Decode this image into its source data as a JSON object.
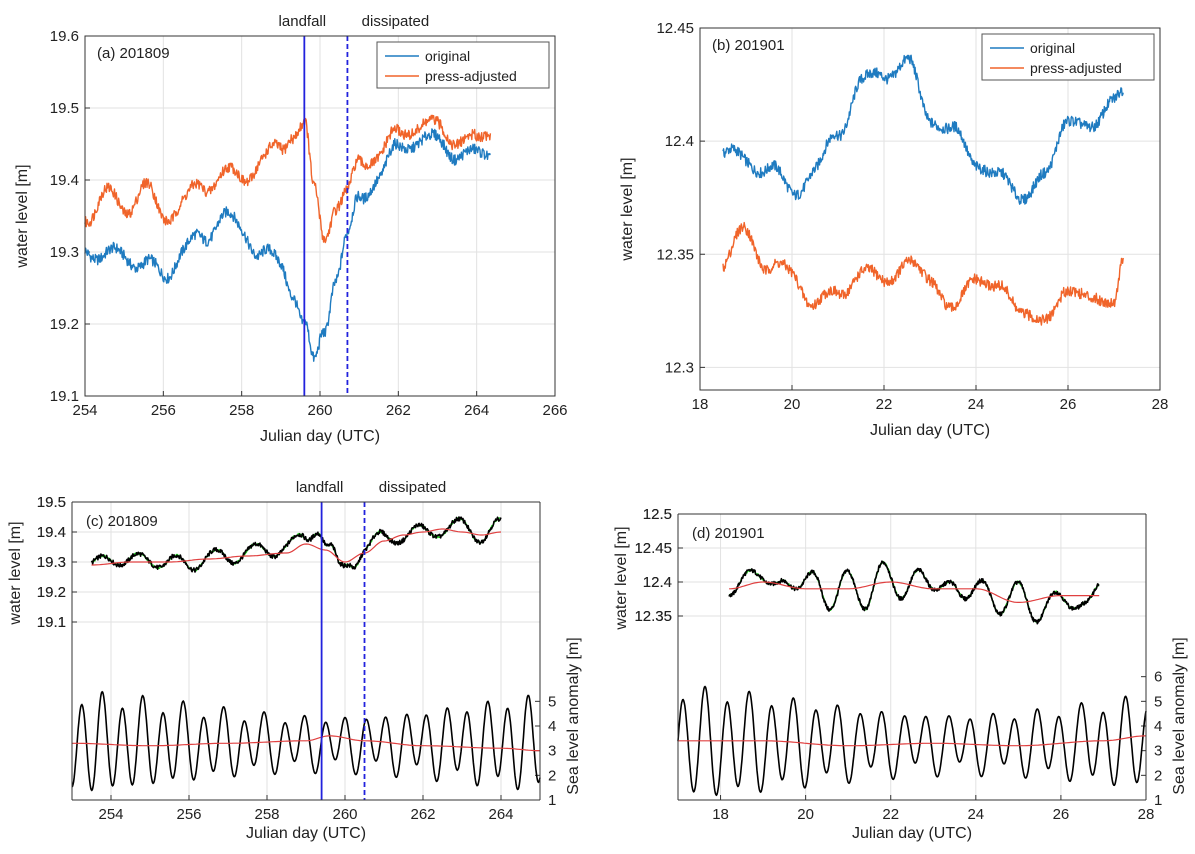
{
  "colors": {
    "original": "#1f7bc0",
    "press_adjusted": "#f0642a",
    "observed": "#000000",
    "tide_fit": "#22cc22",
    "residual": "#e04040",
    "landfall_line": "#2222dd",
    "frame": "#333333"
  },
  "chart_data": [
    {
      "id": "a",
      "type": "line",
      "panel_label": "(a) 201809",
      "xlabel": "Julian day (UTC)",
      "ylabel": "water level [m]",
      "xlim": [
        254,
        266
      ],
      "ylim": [
        19.1,
        19.6
      ],
      "xticks": [
        254,
        256,
        258,
        260,
        262,
        264,
        266
      ],
      "yticks": [
        19.1,
        19.2,
        19.3,
        19.4,
        19.5,
        19.6
      ],
      "ytick_labels": [
        "19.1",
        "19.2",
        "19.3",
        "19.4",
        "19.5",
        "19.6"
      ],
      "grid": true,
      "legend": {
        "position": "top-right",
        "entries": [
          "original",
          "press-adjusted"
        ]
      },
      "events": [
        {
          "label": "landfall",
          "x": 259.6,
          "style": "solid"
        },
        {
          "label": "dissipated",
          "x": 260.7,
          "style": "dashed"
        }
      ],
      "series": [
        {
          "name": "original",
          "color_key": "original",
          "x": [
            254.0,
            254.5,
            255.0,
            255.5,
            256.0,
            256.5,
            257.0,
            257.5,
            258.0,
            258.5,
            259.0,
            259.3,
            259.6,
            259.85,
            260.1,
            260.4,
            260.7,
            261.0,
            261.5,
            262.0,
            262.5,
            263.0,
            263.5,
            264.0,
            264.35
          ],
          "y": [
            19.31,
            19.29,
            19.3,
            19.28,
            19.27,
            19.3,
            19.32,
            19.35,
            19.33,
            19.3,
            19.28,
            19.25,
            19.2,
            19.14,
            19.19,
            19.27,
            19.32,
            19.37,
            19.41,
            19.44,
            19.46,
            19.45,
            19.44,
            19.43,
            19.44
          ]
        },
        {
          "name": "press-adjusted",
          "color_key": "press_adjusted",
          "x": [
            254.0,
            254.5,
            255.0,
            255.5,
            256.0,
            256.5,
            257.0,
            257.5,
            258.0,
            258.5,
            259.0,
            259.3,
            259.6,
            259.85,
            260.1,
            260.4,
            260.7,
            261.0,
            261.5,
            262.0,
            262.5,
            263.0,
            263.5,
            264.0,
            264.35
          ],
          "y": [
            19.35,
            19.38,
            19.36,
            19.39,
            19.35,
            19.37,
            19.39,
            19.41,
            19.4,
            19.43,
            19.44,
            19.47,
            19.48,
            19.38,
            19.32,
            19.37,
            19.38,
            19.42,
            19.44,
            19.46,
            19.48,
            19.47,
            19.46,
            19.45,
            19.47
          ]
        }
      ]
    },
    {
      "id": "b",
      "type": "line",
      "panel_label": "(b) 201901",
      "xlabel": "Julian day (UTC)",
      "ylabel": "water level [m]",
      "xlim": [
        18,
        28
      ],
      "ylim": [
        12.29,
        12.45
      ],
      "xticks": [
        18,
        20,
        22,
        24,
        26,
        28
      ],
      "yticks": [
        12.3,
        12.35,
        12.4,
        12.45
      ],
      "ytick_labels": [
        "12.3",
        "12.35",
        "12.4",
        "12.45"
      ],
      "grid": true,
      "legend": {
        "position": "top-right",
        "entries": [
          "original",
          "press-adjusted"
        ]
      },
      "events": [],
      "series": [
        {
          "name": "original",
          "color_key": "original",
          "x": [
            18.5,
            19.0,
            19.5,
            20.0,
            20.5,
            21.0,
            21.5,
            22.0,
            22.5,
            23.0,
            23.5,
            24.0,
            24.5,
            25.0,
            25.5,
            26.0,
            26.5,
            27.0,
            27.2
          ],
          "y": [
            12.395,
            12.39,
            12.39,
            12.375,
            12.39,
            12.4,
            12.43,
            12.425,
            12.44,
            12.405,
            12.41,
            12.385,
            12.39,
            12.37,
            12.39,
            12.405,
            12.41,
            12.415,
            12.42
          ]
        },
        {
          "name": "press-adjusted",
          "color_key": "press_adjusted",
          "x": [
            18.5,
            19.0,
            19.5,
            20.0,
            20.5,
            21.0,
            21.5,
            22.0,
            22.5,
            23.0,
            23.5,
            24.0,
            24.5,
            25.0,
            25.5,
            26.0,
            26.5,
            27.0,
            27.2
          ],
          "y": [
            12.345,
            12.36,
            12.345,
            12.34,
            12.33,
            12.33,
            12.345,
            12.335,
            12.35,
            12.335,
            12.33,
            12.335,
            12.34,
            12.32,
            12.325,
            12.33,
            12.335,
            12.325,
            12.345
          ]
        }
      ]
    },
    {
      "id": "c",
      "type": "line",
      "panel_label": "(c) 201809",
      "xlabel": "Julian day (UTC)",
      "ylabel": "water level [m]",
      "y2label": "Sea level anomaly [m]",
      "xlim": [
        253,
        265
      ],
      "ylim": [
        19.0,
        19.5
      ],
      "y2lim": [
        1,
        7
      ],
      "xticks": [
        254,
        256,
        258,
        260,
        262,
        264
      ],
      "yticks": [
        19.1,
        19.2,
        19.3,
        19.4,
        19.5
      ],
      "ytick_labels": [
        "19.1",
        "19.2",
        "19.3",
        "19.4",
        "19.5"
      ],
      "y2ticks": [
        1,
        2,
        3,
        4,
        5
      ],
      "grid": true,
      "events": [
        {
          "label": "landfall",
          "x": 259.4,
          "style": "solid"
        },
        {
          "label": "dissipated",
          "x": 260.5,
          "style": "dashed"
        }
      ],
      "series_top": [
        {
          "color_key": "observed",
          "x": [
            253.5,
            254.0,
            254.5,
            255.0,
            255.5,
            256.0,
            256.5,
            257.0,
            257.5,
            258.0,
            258.5,
            259.0,
            259.3,
            259.6,
            259.9,
            260.2,
            260.5,
            261.0,
            261.5,
            262.0,
            262.5,
            263.0,
            263.5,
            264.0
          ],
          "y": [
            19.28,
            19.32,
            19.3,
            19.31,
            19.3,
            19.29,
            19.32,
            19.31,
            19.34,
            19.33,
            19.36,
            19.37,
            19.42,
            19.35,
            19.27,
            19.3,
            19.35,
            19.38,
            19.39,
            19.4,
            19.41,
            19.42,
            19.39,
            19.42
          ]
        },
        {
          "color_key": "residual",
          "x": [
            253.5,
            254.5,
            255.5,
            256.5,
            257.5,
            258.5,
            259.0,
            259.5,
            260.0,
            260.5,
            261.0,
            261.5,
            262.0,
            262.5,
            263.0,
            263.5,
            264.0
          ],
          "y": [
            19.29,
            19.3,
            19.3,
            19.31,
            19.32,
            19.33,
            19.36,
            19.34,
            19.3,
            19.33,
            19.37,
            19.39,
            19.4,
            19.41,
            19.4,
            19.39,
            19.4
          ]
        }
      ],
      "anomaly_series": [
        {
          "color_key": "residual",
          "x": [
            253.0,
            255.0,
            257.0,
            259.0,
            259.6,
            260.5,
            262.0,
            264.0,
            265.0
          ],
          "y": [
            3.3,
            3.2,
            3.3,
            3.4,
            3.6,
            3.4,
            3.2,
            3.1,
            3.0
          ]
        }
      ],
      "anomaly_oscillation": {
        "color_key": "observed",
        "period_days": 0.52,
        "baseline": 3.3,
        "amplitude": 1.9
      }
    },
    {
      "id": "d",
      "type": "line",
      "panel_label": "(d) 201901",
      "xlabel": "Julian day (UTC)",
      "ylabel": "water level [m]",
      "y2label": "Sea level anomaly [m]",
      "xlim": [
        17,
        28
      ],
      "ylim": [
        12.3,
        12.5
      ],
      "y2lim": [
        1,
        7
      ],
      "xticks": [
        18,
        20,
        22,
        24,
        26,
        28
      ],
      "yticks": [
        12.35,
        12.4,
        12.45,
        12.5
      ],
      "ytick_labels": [
        "12.35",
        "12.4",
        "12.45",
        "12.5"
      ],
      "y2ticks": [
        1,
        2,
        3,
        4,
        5,
        6
      ],
      "grid": true,
      "events": [],
      "series_top": [
        {
          "color_key": "observed",
          "x": [
            18.2,
            18.6,
            19.0,
            19.4,
            19.8,
            20.2,
            20.6,
            21.0,
            21.4,
            21.8,
            22.2,
            22.6,
            23.0,
            23.4,
            23.8,
            24.2,
            24.6,
            25.0,
            25.4,
            25.8,
            26.2,
            26.6,
            26.9
          ],
          "y": [
            12.39,
            12.41,
            12.4,
            12.41,
            12.38,
            12.42,
            12.36,
            12.41,
            12.37,
            12.42,
            12.38,
            12.42,
            12.38,
            12.41,
            12.37,
            12.4,
            12.36,
            12.39,
            12.35,
            12.38,
            12.36,
            12.38,
            12.39
          ]
        },
        {
          "color_key": "residual",
          "x": [
            18.2,
            19.0,
            20.0,
            21.0,
            22.0,
            23.0,
            24.0,
            25.0,
            26.0,
            26.9
          ],
          "y": [
            12.39,
            12.4,
            12.39,
            12.39,
            12.4,
            12.39,
            12.39,
            12.37,
            12.38,
            12.38
          ]
        }
      ],
      "anomaly_series": [
        {
          "color_key": "residual",
          "x": [
            17.0,
            19.0,
            21.0,
            23.0,
            25.0,
            27.0,
            28.0
          ],
          "y": [
            3.4,
            3.4,
            3.2,
            3.3,
            3.2,
            3.4,
            3.6
          ]
        }
      ],
      "anomaly_oscillation": {
        "color_key": "observed",
        "period_days": 0.52,
        "baseline": 3.3,
        "amplitude": 2.1
      }
    }
  ]
}
